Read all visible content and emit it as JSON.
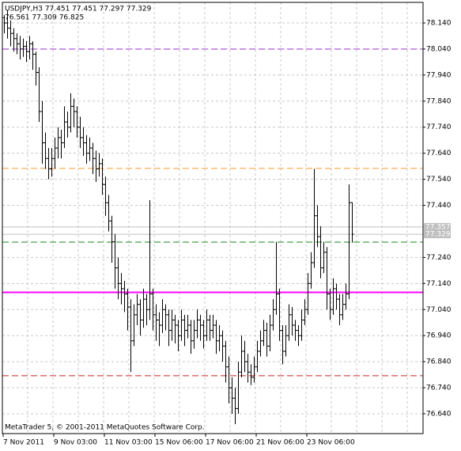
{
  "chart_data": {
    "type": "ohlc",
    "title": "USDJPY,H3  77.451 77.451 77.297 77.329",
    "subtitle": "76.561 77.309 76.825",
    "annotation": "MetaTrader 5, © 2001-2011 MetaQuotes Software Corp.",
    "color": "#000000",
    "grid": true,
    "categories": [
      "7 Nov 2011",
      "9 Nov 03:00",
      "11 Nov 03:00",
      "15 Nov 06:00",
      "17 Nov 06:00",
      "21 Nov 06:00",
      "23 Nov 06:00"
    ],
    "ylim": [
      76.564,
      78.219
    ],
    "yticks": [
      {
        "value": 78.14,
        "label": "78.140"
      },
      {
        "value": 78.04,
        "label": "78.040"
      },
      {
        "value": 77.94,
        "label": "77.940"
      },
      {
        "value": 77.84,
        "label": "77.840"
      },
      {
        "value": 77.74,
        "label": "77.740"
      },
      {
        "value": 77.64,
        "label": "77.640"
      },
      {
        "value": 77.54,
        "label": "77.540"
      },
      {
        "value": 77.44,
        "label": "77.440"
      },
      {
        "value": 77.24,
        "label": "77.240"
      },
      {
        "value": 77.14,
        "label": "77.140"
      },
      {
        "value": 77.04,
        "label": "77.040"
      },
      {
        "value": 76.94,
        "label": "76.940"
      },
      {
        "value": 76.84,
        "label": "76.840"
      },
      {
        "value": 76.74,
        "label": "76.740"
      },
      {
        "value": 76.64,
        "label": "76.640"
      }
    ],
    "levels": [
      {
        "value": 78.04,
        "color": "#9b30d0",
        "dashed": true
      },
      {
        "value": 77.582,
        "color": "#ff9a2e",
        "dashed": true
      },
      {
        "value": 77.299,
        "color": "#1a8a1a",
        "dashed": true
      },
      {
        "value": 77.106,
        "color": "#ff00ff",
        "dashed": false
      },
      {
        "value": 76.786,
        "color": "#cc2222",
        "dashed": true
      }
    ],
    "price_tags": [
      77.357,
      77.329
    ],
    "price_tag_color": "#c0c0c0",
    "bars": [
      [
        78.16,
        78.17,
        78.1,
        78.14
      ],
      [
        78.14,
        78.19,
        78.08,
        78.12
      ],
      [
        78.12,
        78.15,
        78.05,
        78.1
      ],
      [
        78.1,
        78.12,
        78.03,
        78.08
      ],
      [
        78.08,
        78.1,
        78.02,
        78.06
      ],
      [
        78.06,
        78.09,
        78.0,
        78.04
      ],
      [
        78.04,
        78.08,
        78.01,
        78.05
      ],
      [
        78.05,
        78.07,
        77.99,
        78.03
      ],
      [
        78.03,
        78.09,
        78.0,
        78.06
      ],
      [
        78.06,
        78.07,
        77.96,
        78.02
      ],
      [
        78.02,
        78.03,
        77.9,
        77.95
      ],
      [
        77.95,
        77.97,
        77.76,
        77.8
      ],
      [
        77.8,
        77.84,
        77.6,
        77.68
      ],
      [
        77.68,
        77.72,
        77.58,
        77.62
      ],
      [
        77.62,
        77.66,
        77.54,
        77.58
      ],
      [
        77.58,
        77.66,
        77.55,
        77.62
      ],
      [
        77.62,
        77.7,
        77.58,
        77.66
      ],
      [
        77.66,
        77.74,
        77.62,
        77.7
      ],
      [
        77.7,
        77.73,
        77.62,
        77.68
      ],
      [
        77.68,
        77.82,
        77.66,
        77.76
      ],
      [
        77.76,
        77.8,
        77.7,
        77.74
      ],
      [
        77.74,
        77.87,
        77.72,
        77.82
      ],
      [
        77.82,
        77.85,
        77.74,
        77.8
      ],
      [
        77.8,
        77.82,
        77.7,
        77.74
      ],
      [
        77.74,
        77.78,
        77.66,
        77.7
      ],
      [
        77.7,
        77.74,
        77.63,
        77.68
      ],
      [
        77.68,
        77.71,
        77.6,
        77.64
      ],
      [
        77.64,
        77.7,
        77.61,
        77.66
      ],
      [
        77.66,
        77.68,
        77.56,
        77.62
      ],
      [
        77.62,
        77.65,
        77.53,
        77.58
      ],
      [
        77.58,
        77.64,
        77.55,
        77.6
      ],
      [
        77.6,
        77.62,
        77.48,
        77.52
      ],
      [
        77.52,
        77.55,
        77.4,
        77.45
      ],
      [
        77.45,
        77.48,
        77.34,
        77.38
      ],
      [
        77.38,
        77.4,
        77.22,
        77.3
      ],
      [
        77.3,
        77.33,
        77.12,
        77.2
      ],
      [
        77.2,
        77.24,
        77.08,
        77.14
      ],
      [
        77.14,
        77.18,
        77.06,
        77.12
      ],
      [
        77.12,
        77.15,
        77.03,
        77.1
      ],
      [
        77.1,
        77.12,
        76.96,
        77.05
      ],
      [
        77.05,
        77.08,
        76.8,
        76.92
      ],
      [
        76.92,
        77.06,
        76.9,
        77.02
      ],
      [
        77.02,
        77.1,
        76.98,
        77.06
      ],
      [
        77.06,
        77.08,
        76.94,
        77.0
      ],
      [
        77.0,
        77.12,
        76.97,
        77.08
      ],
      [
        77.08,
        77.1,
        76.98,
        77.04
      ],
      [
        77.04,
        77.46,
        77.0,
        77.1
      ],
      [
        77.1,
        77.12,
        76.96,
        77.02
      ],
      [
        77.02,
        77.06,
        76.92,
        77.0
      ],
      [
        77.0,
        77.03,
        76.9,
        76.98
      ],
      [
        76.98,
        77.08,
        76.95,
        77.04
      ],
      [
        77.04,
        77.06,
        76.96,
        77.02
      ],
      [
        77.02,
        77.04,
        76.9,
        76.96
      ],
      [
        76.96,
        77.04,
        76.92,
        77.0
      ],
      [
        77.0,
        77.02,
        76.91,
        76.98
      ],
      [
        76.98,
        77.0,
        76.88,
        76.94
      ],
      [
        76.94,
        77.04,
        76.92,
        77.0
      ],
      [
        77.0,
        77.02,
        76.9,
        76.96
      ],
      [
        76.96,
        77.02,
        76.93,
        76.98
      ],
      [
        76.98,
        77.0,
        76.87,
        76.92
      ],
      [
        76.92,
        77.0,
        76.89,
        76.96
      ],
      [
        76.96,
        77.04,
        76.93,
        77.0
      ],
      [
        77.0,
        77.02,
        76.92,
        76.98
      ],
      [
        76.98,
        77.0,
        76.89,
        76.94
      ],
      [
        76.94,
        77.04,
        76.92,
        77.0
      ],
      [
        77.0,
        77.02,
        76.92,
        76.96
      ],
      [
        76.96,
        77.02,
        76.93,
        76.98
      ],
      [
        76.98,
        77.0,
        76.87,
        76.92
      ],
      [
        76.92,
        76.98,
        76.88,
        76.94
      ],
      [
        76.94,
        76.96,
        76.84,
        76.9
      ],
      [
        76.9,
        76.92,
        76.76,
        76.82
      ],
      [
        76.82,
        76.86,
        76.68,
        76.74
      ],
      [
        76.74,
        76.78,
        76.64,
        76.7
      ],
      [
        76.7,
        76.74,
        76.6,
        76.66
      ],
      [
        76.66,
        76.84,
        76.64,
        76.8
      ],
      [
        76.8,
        76.94,
        76.78,
        76.88
      ],
      [
        76.88,
        76.92,
        76.8,
        76.84
      ],
      [
        76.84,
        76.87,
        76.76,
        76.8
      ],
      [
        76.8,
        76.83,
        76.75,
        76.78
      ],
      [
        76.78,
        76.86,
        76.76,
        76.82
      ],
      [
        76.82,
        76.92,
        76.8,
        76.88
      ],
      [
        76.88,
        76.96,
        76.86,
        76.92
      ],
      [
        76.92,
        77.0,
        76.9,
        76.96
      ],
      [
        76.96,
        76.99,
        76.86,
        76.9
      ],
      [
        76.9,
        77.02,
        76.88,
        76.98
      ],
      [
        76.98,
        77.08,
        76.96,
        77.04
      ],
      [
        77.04,
        77.3,
        77.02,
        77.1
      ],
      [
        77.1,
        77.12,
        76.92,
        76.96
      ],
      [
        76.96,
        76.98,
        76.83,
        76.88
      ],
      [
        76.88,
        76.98,
        76.86,
        76.94
      ],
      [
        76.94,
        77.06,
        76.92,
        77.02
      ],
      [
        77.02,
        77.05,
        76.94,
        76.98
      ],
      [
        76.98,
        77.0,
        76.92,
        76.96
      ],
      [
        76.96,
        76.98,
        76.9,
        76.94
      ],
      [
        76.94,
        77.04,
        76.92,
        77.0
      ],
      [
        77.0,
        77.08,
        76.98,
        77.04
      ],
      [
        77.04,
        77.18,
        77.02,
        77.14
      ],
      [
        77.14,
        77.26,
        77.12,
        77.22
      ],
      [
        77.22,
        77.58,
        77.2,
        77.4
      ],
      [
        77.4,
        77.44,
        77.28,
        77.32
      ],
      [
        77.32,
        77.36,
        77.16,
        77.2
      ],
      [
        77.2,
        77.3,
        77.18,
        77.26
      ],
      [
        77.26,
        77.28,
        77.04,
        77.1
      ],
      [
        77.1,
        77.12,
        77.0,
        77.04
      ],
      [
        77.04,
        77.16,
        77.02,
        77.12
      ],
      [
        77.12,
        77.14,
        77.04,
        77.08
      ],
      [
        77.08,
        77.1,
        76.98,
        77.02
      ],
      [
        77.02,
        77.1,
        77.0,
        77.06
      ],
      [
        77.06,
        77.14,
        77.04,
        77.1
      ],
      [
        77.1,
        77.52,
        77.08,
        77.45
      ],
      [
        77.451,
        77.451,
        77.297,
        77.329
      ]
    ]
  }
}
